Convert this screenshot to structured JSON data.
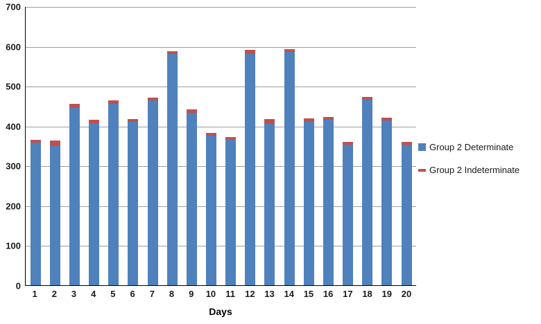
{
  "chart_data": {
    "type": "bar",
    "stacked": true,
    "title": "",
    "xlabel": "Days",
    "ylabel": "",
    "ylim": [
      0,
      700
    ],
    "ytick_step": 100,
    "grid": true,
    "legend_position": "right",
    "categories": [
      "1",
      "2",
      "3",
      "4",
      "5",
      "6",
      "7",
      "8",
      "9",
      "10",
      "11",
      "12",
      "13",
      "14",
      "15",
      "16",
      "17",
      "18",
      "19",
      "20"
    ],
    "series": [
      {
        "name": "Group 2 Determinate",
        "color": "#4f81bd",
        "marker": "square",
        "values": [
          358,
          350,
          445,
          407,
          455,
          410,
          463,
          580,
          432,
          375,
          367,
          580,
          405,
          585,
          410,
          415,
          353,
          465,
          413,
          353
        ]
      },
      {
        "name": "Group 2 Indeterminate",
        "color": "#c0504d",
        "marker": "dash",
        "values": [
          7,
          13,
          10,
          8,
          8,
          7,
          8,
          7,
          10,
          7,
          5,
          10,
          12,
          7,
          8,
          8,
          7,
          8,
          8,
          7
        ]
      }
    ]
  },
  "axis": {
    "y_ticks": [
      "0",
      "100",
      "200",
      "300",
      "400",
      "500",
      "600",
      "700"
    ]
  }
}
